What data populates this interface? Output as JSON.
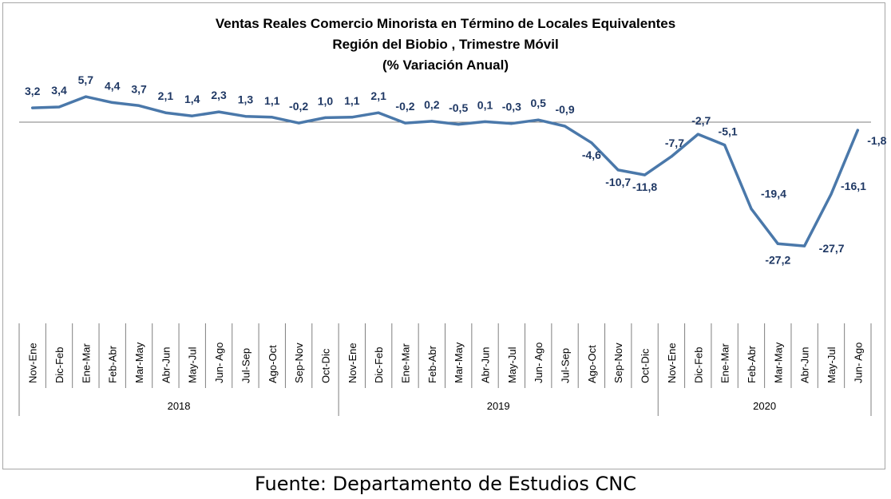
{
  "chart_data": {
    "type": "line",
    "title": [
      "Ventas Reales Comercio Minorista  en Término de Locales Equivalentes",
      "Región del Biobio , Trimestre Móvil",
      "(% Variación Anual)"
    ],
    "x": [
      "Nov-Ene",
      "Dic-Feb",
      "Ene-Mar",
      "Feb-Abr",
      "Mar-May",
      "Abr-Jun",
      "May-Jul",
      "Jun- Ago",
      "Jul-Sep",
      "Ago-Oct",
      "Sep-Nov",
      "Oct-Dic",
      "Nov-Ene",
      "Dic-Feb",
      "Ene-Mar",
      "Feb-Abr",
      "Mar-May",
      "Abr-Jun",
      "May-Jul",
      "Jun- Ago",
      "Jul-Sep",
      "Ago-Oct",
      "Sep-Nov",
      "Oct-Dic",
      "Nov-Ene",
      "Dic-Feb",
      "Ene-Mar",
      "Feb-Abr",
      "Mar-May",
      "Abr-Jun",
      "May-Jul",
      "Jun- Ago"
    ],
    "years": [
      {
        "label": "2018",
        "start": 0,
        "end": 11
      },
      {
        "label": "2019",
        "start": 12,
        "end": 23
      },
      {
        "label": "2020",
        "start": 24,
        "end": 31
      }
    ],
    "series": [
      {
        "values": [
          3.2,
          3.4,
          5.7,
          4.4,
          3.7,
          2.1,
          1.4,
          2.3,
          1.3,
          1.1,
          -0.2,
          1.0,
          1.1,
          2.1,
          -0.2,
          0.2,
          -0.5,
          0.1,
          -0.3,
          0.5,
          -0.9,
          -4.6,
          -10.7,
          -11.8,
          -7.7,
          -2.7,
          -5.1,
          -19.4,
          -27.2,
          -27.7,
          -16.1,
          -1.8
        ],
        "labels": [
          "3,2",
          "3,4",
          "5,7",
          "4,4",
          "3,7",
          "2,1",
          "1,4",
          "2,3",
          "1,3",
          "1,1",
          "-0,2",
          "1,0",
          "1,1",
          "2,1",
          "-0,2",
          "0,2",
          "-0,5",
          "0,1",
          "-0,3",
          "0,5",
          "-0,9",
          "-4,6",
          "-10,7",
          "-11,8",
          "-7,7",
          "-2,7",
          "-5,1",
          "-19,4",
          "-27,2",
          "-27,7",
          "-16,1",
          "-1,8"
        ]
      }
    ],
    "color": "#4a78aa",
    "label_color": "#1f3864",
    "grid": false,
    "legend": "none"
  },
  "source": "Fuente: Departamento de Estudios CNC"
}
